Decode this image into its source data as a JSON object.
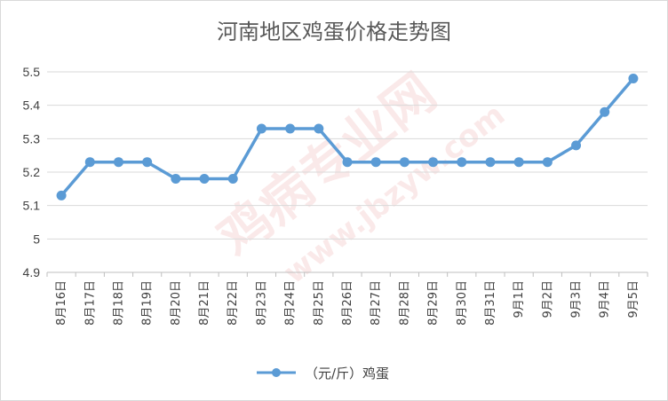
{
  "chart_data": {
    "type": "line",
    "title": "河南地区鸡蛋价格走势图",
    "xlabel": "",
    "ylabel": "",
    "categories": [
      "8月16日",
      "8月17日",
      "8月18日",
      "8月19日",
      "8月20日",
      "8月21日",
      "8月22日",
      "8月23日",
      "8月24日",
      "8月25日",
      "8月26日",
      "8月27日",
      "8月28日",
      "8月29日",
      "8月30日",
      "8月31日",
      "9月1日",
      "9月2日",
      "9月3日",
      "9月4日",
      "9月5日"
    ],
    "series": [
      {
        "name": "（元/斤）鸡蛋",
        "color": "#5b9bd5",
        "values": [
          5.13,
          5.23,
          5.23,
          5.23,
          5.18,
          5.18,
          5.18,
          5.33,
          5.33,
          5.33,
          5.23,
          5.23,
          5.23,
          5.23,
          5.23,
          5.23,
          5.23,
          5.23,
          5.28,
          5.38,
          5.48
        ]
      }
    ],
    "ylim": [
      4.9,
      5.5
    ],
    "yticks": [
      "4.9",
      "5",
      "5.1",
      "5.2",
      "5.3",
      "5.4",
      "5.5"
    ],
    "grid": true,
    "legend_position": "bottom"
  },
  "watermark": {
    "main": "鸡病专业网",
    "url": "www.jbzyw.com"
  }
}
